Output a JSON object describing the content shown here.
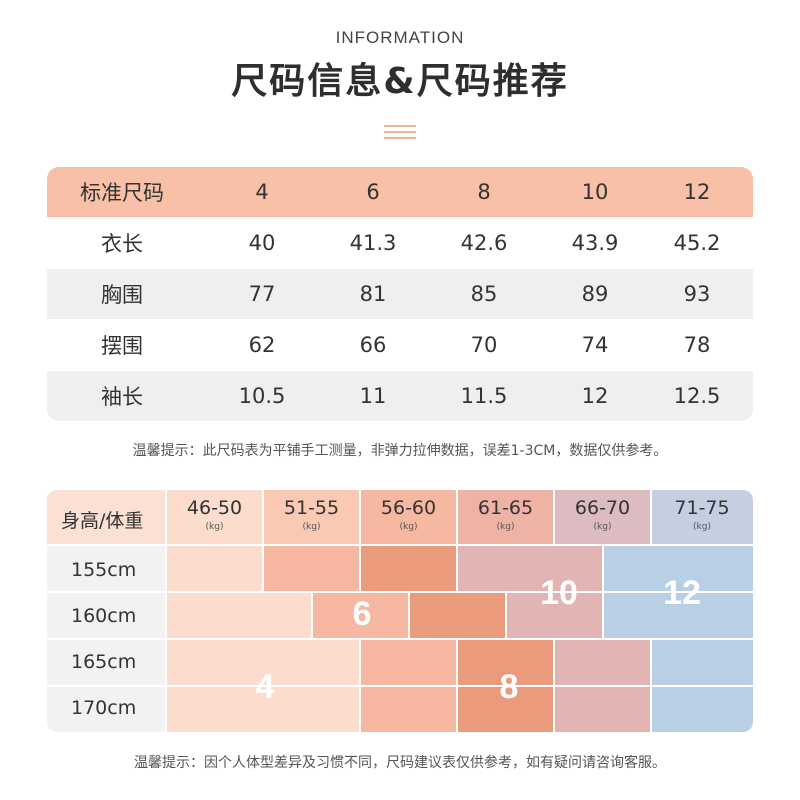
{
  "header": {
    "english": "INFORMATION",
    "chinese": "尺码信息&尺码推荐"
  },
  "size_table": {
    "columns": [
      "标准尺码",
      "4",
      "6",
      "8",
      "10",
      "12"
    ],
    "rows": [
      {
        "label": "衣长",
        "values": [
          "40",
          "41.3",
          "42.6",
          "43.9",
          "45.2"
        ]
      },
      {
        "label": "胸围",
        "values": [
          "77",
          "81",
          "85",
          "89",
          "93"
        ]
      },
      {
        "label": "摆围",
        "values": [
          "62",
          "66",
          "70",
          "74",
          "78"
        ]
      },
      {
        "label": "袖长",
        "values": [
          "10.5",
          "11",
          "11.5",
          "12",
          "12.5"
        ]
      }
    ],
    "note": "温馨提示：此尺码表为平铺手工测量，非弹力拉伸数据，误差1-3CM，数据仅供参考。"
  },
  "recommendation": {
    "corner": "身高/体重",
    "weights": [
      {
        "range": "46-50",
        "unit": "(kg)"
      },
      {
        "range": "51-55",
        "unit": "(kg)"
      },
      {
        "range": "56-60",
        "unit": "(kg)"
      },
      {
        "range": "61-65",
        "unit": "(kg)"
      },
      {
        "range": "66-70",
        "unit": "(kg)"
      },
      {
        "range": "71-75",
        "unit": "(kg)"
      }
    ],
    "heights": [
      "155cm",
      "160cm",
      "165cm",
      "170cm"
    ],
    "size_labels": [
      "4",
      "6",
      "8",
      "10",
      "12"
    ],
    "note": "温馨提示：因个人体型差异及习惯不同，尺码建议表仅供参考，如有疑问请咨询客服。"
  },
  "colors": {
    "header_row": "#f7c0a7",
    "gray_row": "#efefef",
    "size_4": "#fbdccd",
    "size_6": "#f6b8a0",
    "size_8": "#ea9b7c",
    "size_10": "#e2b4b4",
    "size_12": "#b8cfe4"
  }
}
